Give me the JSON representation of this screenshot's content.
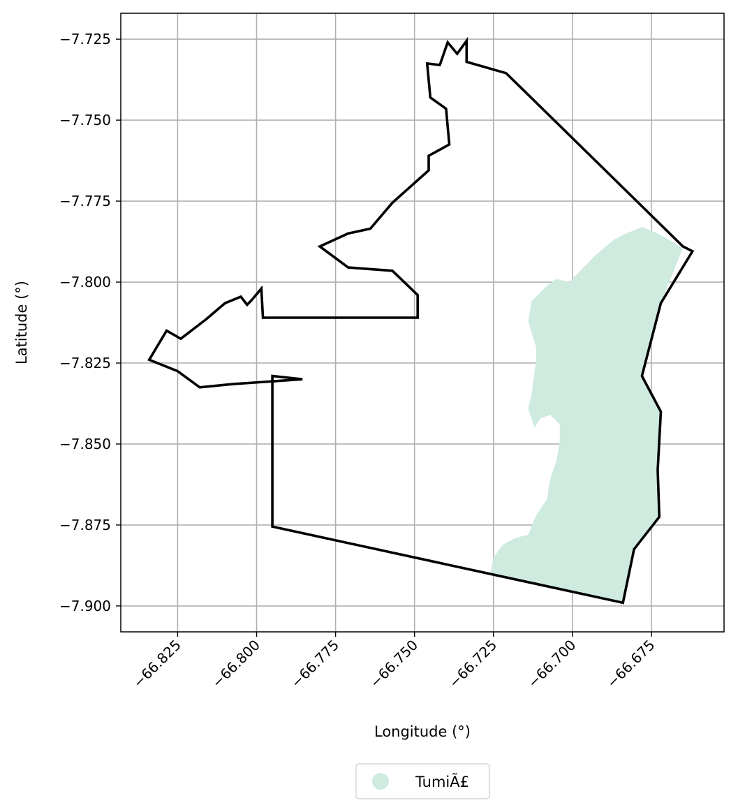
{
  "chart_data": {
    "type": "map",
    "xlabel": "Longitude (°)",
    "ylabel": "Latitude (°)",
    "xlim": [
      -66.843,
      -66.652
    ],
    "ylim": [
      -7.908,
      -7.717
    ],
    "grid": true,
    "x_ticks": [
      {
        "value": -66.825,
        "label": "−66.825"
      },
      {
        "value": -66.8,
        "label": "−66.800"
      },
      {
        "value": -66.775,
        "label": "−66.775"
      },
      {
        "value": -66.75,
        "label": "−66.750"
      },
      {
        "value": -66.725,
        "label": "−66.725"
      },
      {
        "value": -66.7,
        "label": "−66.700"
      },
      {
        "value": -66.675,
        "label": "−66.675"
      }
    ],
    "y_ticks": [
      {
        "value": -7.725,
        "label": "−7.725"
      },
      {
        "value": -7.75,
        "label": "−7.750"
      },
      {
        "value": -7.775,
        "label": "−7.775"
      },
      {
        "value": -7.8,
        "label": "−7.800"
      },
      {
        "value": -7.825,
        "label": "−7.825"
      },
      {
        "value": -7.85,
        "label": "−7.850"
      },
      {
        "value": -7.875,
        "label": "−7.875"
      },
      {
        "value": -7.9,
        "label": "−7.900"
      }
    ],
    "boundary": {
      "color": "#000000",
      "coordinates": [
        [
          -66.7335,
          -7.7255
        ],
        [
          -66.7335,
          -7.732
        ],
        [
          -66.721,
          -7.7355
        ],
        [
          -66.665,
          -7.789
        ],
        [
          -66.662,
          -7.7905
        ],
        [
          -66.672,
          -7.8065
        ],
        [
          -66.678,
          -7.829
        ],
        [
          -66.672,
          -7.84
        ],
        [
          -66.673,
          -7.858
        ],
        [
          -66.6725,
          -7.8725
        ],
        [
          -66.6805,
          -7.8825
        ],
        [
          -66.684,
          -7.899
        ],
        [
          -66.795,
          -7.8755
        ],
        [
          -66.795,
          -7.829
        ],
        [
          -66.7855,
          -7.83
        ],
        [
          -66.8075,
          -7.8315
        ],
        [
          -66.818,
          -7.8325
        ],
        [
          -66.825,
          -7.8275
        ],
        [
          -66.834,
          -7.824
        ],
        [
          -66.8285,
          -7.815
        ],
        [
          -66.824,
          -7.8175
        ],
        [
          -66.816,
          -7.8115
        ],
        [
          -66.81,
          -7.8065
        ],
        [
          -66.805,
          -7.8045
        ],
        [
          -66.803,
          -7.807
        ],
        [
          -66.8015,
          -7.8055
        ],
        [
          -66.7985,
          -7.802
        ],
        [
          -66.798,
          -7.811
        ],
        [
          -66.749,
          -7.811
        ],
        [
          -66.749,
          -7.804
        ],
        [
          -66.757,
          -7.7965
        ],
        [
          -66.771,
          -7.7955
        ],
        [
          -66.78,
          -7.789
        ],
        [
          -66.771,
          -7.785
        ],
        [
          -66.764,
          -7.7835
        ],
        [
          -66.757,
          -7.7755
        ],
        [
          -66.7455,
          -7.7655
        ],
        [
          -66.7455,
          -7.761
        ],
        [
          -66.739,
          -7.7575
        ],
        [
          -66.74,
          -7.7465
        ],
        [
          -66.745,
          -7.743
        ],
        [
          -66.746,
          -7.7325
        ],
        [
          -66.742,
          -7.733
        ],
        [
          -66.7395,
          -7.726
        ],
        [
          -66.7365,
          -7.7295
        ],
        [
          -66.7335,
          -7.7255
        ]
      ]
    },
    "series": [
      {
        "name": "TumiÃ£",
        "color": "#cfebdf",
        "coordinates": [
          [
            -66.678,
            -7.783
          ],
          [
            -66.673,
            -7.785
          ],
          [
            -66.665,
            -7.7895
          ],
          [
            -66.672,
            -7.8065
          ],
          [
            -66.678,
            -7.829
          ],
          [
            -66.672,
            -7.84
          ],
          [
            -66.673,
            -7.858
          ],
          [
            -66.6725,
            -7.8725
          ],
          [
            -66.6805,
            -7.8825
          ],
          [
            -66.684,
            -7.899
          ],
          [
            -66.726,
            -7.89
          ],
          [
            -66.725,
            -7.885
          ],
          [
            -66.722,
            -7.881
          ],
          [
            -66.718,
            -7.879
          ],
          [
            -66.714,
            -7.878
          ],
          [
            -66.7115,
            -7.872
          ],
          [
            -66.708,
            -7.867
          ],
          [
            -66.7075,
            -7.863
          ],
          [
            -66.7065,
            -7.859
          ],
          [
            -66.705,
            -7.855
          ],
          [
            -66.704,
            -7.849
          ],
          [
            -66.704,
            -7.844
          ],
          [
            -66.707,
            -7.841
          ],
          [
            -66.71,
            -7.842
          ],
          [
            -66.712,
            -7.845
          ],
          [
            -66.714,
            -7.839
          ],
          [
            -66.713,
            -7.835
          ],
          [
            -66.7115,
            -7.824
          ],
          [
            -66.7115,
            -7.82
          ],
          [
            -66.7125,
            -7.817
          ],
          [
            -66.714,
            -7.812
          ],
          [
            -66.713,
            -7.806
          ],
          [
            -66.711,
            -7.804
          ],
          [
            -66.708,
            -7.801
          ],
          [
            -66.705,
            -7.799
          ],
          [
            -66.701,
            -7.8
          ],
          [
            -66.6985,
            -7.7975
          ],
          [
            -66.696,
            -7.795
          ],
          [
            -66.693,
            -7.792
          ],
          [
            -66.69,
            -7.7895
          ],
          [
            -66.687,
            -7.787
          ],
          [
            -66.683,
            -7.785
          ],
          [
            -66.678,
            -7.783
          ]
        ]
      }
    ],
    "legend": {
      "placement": "bottom-center",
      "entries": [
        {
          "label": "TumiÃ£",
          "color": "#cfebdf"
        }
      ]
    }
  }
}
